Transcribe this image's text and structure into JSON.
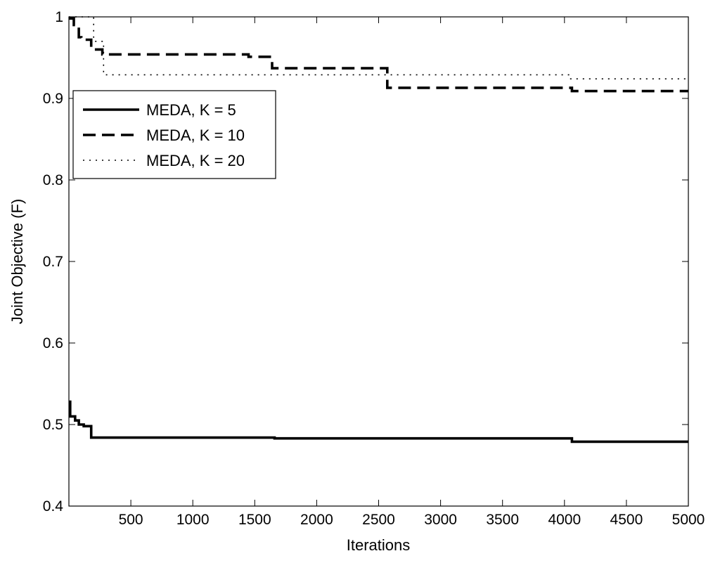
{
  "chart_data": {
    "type": "line",
    "title": "",
    "xlabel": "Iterations",
    "ylabel": "Joint Objective (F)",
    "xlim": [
      0,
      5000
    ],
    "ylim": [
      0.4,
      1.0
    ],
    "xticks": [
      500,
      1000,
      1500,
      2000,
      2500,
      3000,
      3500,
      4000,
      4500,
      5000
    ],
    "yticks": [
      0.4,
      0.5,
      0.6,
      0.7,
      0.8,
      0.9,
      1.0
    ],
    "xtick_labels": [
      "500",
      "1000",
      "1500",
      "2000",
      "2500",
      "3000",
      "3500",
      "4000",
      "4500",
      "5000"
    ],
    "ytick_labels": [
      "0.4",
      "0.5",
      "0.6",
      "0.7",
      "0.8",
      "0.9",
      "1"
    ],
    "grid": false,
    "legend_position": "top-left",
    "step": true,
    "series": [
      {
        "name": "MEDA, K = 5",
        "style": "solid",
        "color": "#000000",
        "x": [
          0,
          10,
          50,
          80,
          120,
          180,
          1660,
          4060,
          5000
        ],
        "y": [
          0.528,
          0.51,
          0.505,
          0.5,
          0.498,
          0.484,
          0.483,
          0.479,
          0.479
        ]
      },
      {
        "name": "MEDA, K = 10",
        "style": "dashed",
        "color": "#000000",
        "x": [
          0,
          40,
          80,
          100,
          180,
          270,
          1450,
          1640,
          2570,
          4060,
          5000
        ],
        "y": [
          0.998,
          0.99,
          0.975,
          0.972,
          0.96,
          0.954,
          0.951,
          0.937,
          0.913,
          0.909,
          0.909
        ]
      },
      {
        "name": "MEDA, K = 20",
        "style": "dotted",
        "color": "#000000",
        "x": [
          0,
          180,
          200,
          280,
          4050,
          5000
        ],
        "y": [
          1.0,
          1.0,
          0.97,
          0.929,
          0.924,
          0.924
        ]
      }
    ]
  }
}
